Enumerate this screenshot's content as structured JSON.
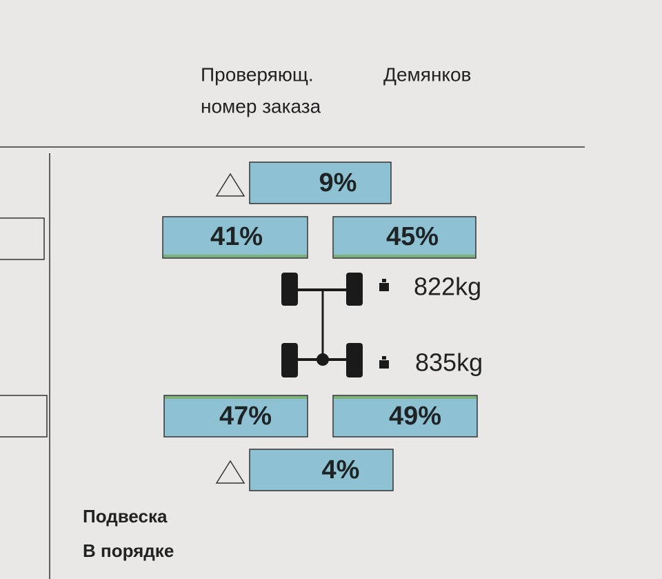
{
  "header": {
    "inspector_label": "Проверяющ.",
    "inspector_name": "Демянков",
    "order_label": "номер заказа"
  },
  "front": {
    "difference": "9%",
    "left": "41%",
    "right": "45%",
    "weight": "822kg"
  },
  "rear": {
    "weight": "835kg",
    "left": "47%",
    "right": "49%",
    "difference": "4%"
  },
  "result": {
    "title": "Подвеска",
    "status": "В порядке"
  }
}
